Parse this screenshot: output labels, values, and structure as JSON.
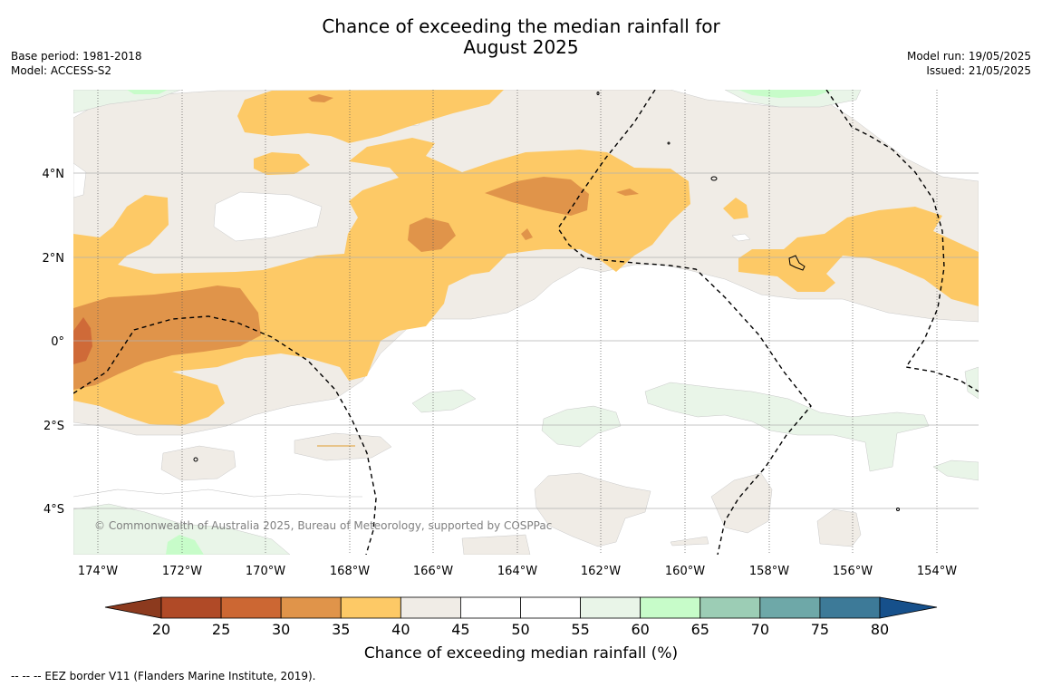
{
  "title_line1": "Chance of exceeding the median rainfall for",
  "title_line2": "August 2025",
  "meta_left": {
    "base_period": "Base period: 1981-2018",
    "model": "Model: ACCESS-S2"
  },
  "meta_right": {
    "model_run": "Model run: 19/05/2025",
    "issued": "Issued: 21/05/2025"
  },
  "copyright": "© Commonwealth of Australia 2025, Bureau of Meteorology, supported by COSPPac",
  "footnote": "--  --  -- EEZ border V11 (Flanders Marine Institute, 2019).",
  "map": {
    "lon_range": [
      -174.6,
      -152.9
    ],
    "lat_range": [
      -5.1,
      6.0
    ],
    "lon_ticks": [
      -174,
      -172,
      -170,
      -168,
      -166,
      -164,
      -162,
      -160,
      -158,
      -156,
      -154
    ],
    "lon_tick_labels": [
      "174°W",
      "172°W",
      "170°W",
      "168°W",
      "166°W",
      "164°W",
      "162°W",
      "160°W",
      "158°W",
      "156°W",
      "154°W"
    ],
    "lat_ticks": [
      4,
      2,
      0,
      -2,
      -4
    ],
    "lat_tick_labels": [
      "4°N",
      "2°N",
      "0°",
      "2°S",
      "4°S"
    ]
  },
  "colorbar": {
    "title": "Chance of exceeding median rainfall (%)",
    "labels": [
      "20",
      "25",
      "30",
      "35",
      "40",
      "45",
      "50",
      "55",
      "60",
      "65",
      "70",
      "75",
      "80"
    ],
    "colors": [
      "#b04a27",
      "#cc6733",
      "#e0944a",
      "#fdc966",
      "#f0ece6",
      "#ffffff",
      "#ffffff",
      "#e9f5e8",
      "#c7fcc9",
      "#9ccdb5",
      "#6ea8a8",
      "#3d7a98"
    ],
    "under_color": "#8c3a1e",
    "over_color": "#16508b"
  },
  "colors": {
    "dark_brown": "#cf6a38",
    "mid_orange": "#e0944a",
    "light_orange": "#fdc966",
    "beige": "#f0ece6",
    "light_green": "#e9f5e8",
    "bright_green": "#c7fcc9",
    "grid": "#b0b0b0"
  }
}
